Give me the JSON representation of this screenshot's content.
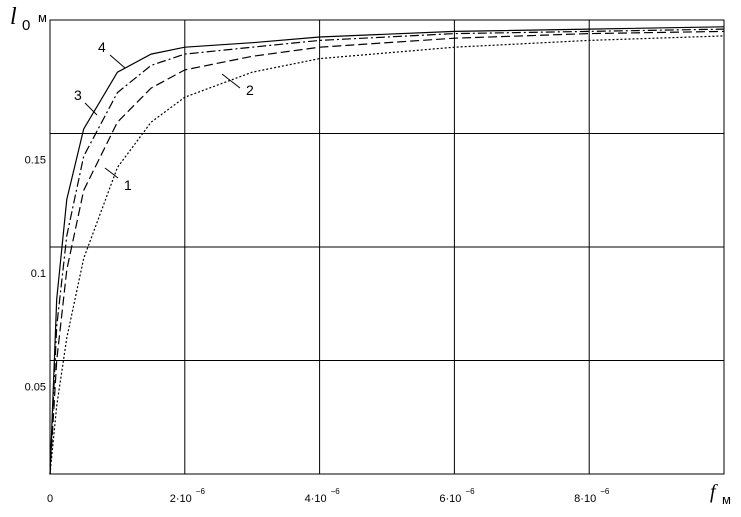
{
  "chart_data": {
    "type": "line",
    "ylabel": {
      "symbol": "l",
      "subscript": "0",
      "unit": "м"
    },
    "xlabel": {
      "symbol": "f",
      "unit": "м"
    },
    "x": [
      0,
      1e-07,
      2.5e-07,
      5e-07,
      1e-06,
      1.5e-06,
      2e-06,
      3e-06,
      4e-06,
      6e-06,
      8e-06,
      1e-05
    ],
    "series": [
      {
        "name": "1",
        "color": "#000000",
        "style": "dotted",
        "values": [
          0,
          0.03,
          0.06,
          0.095,
          0.135,
          0.155,
          0.166,
          0.177,
          0.183,
          0.188,
          0.191,
          0.193
        ]
      },
      {
        "name": "2",
        "color": "#000000",
        "style": "dashed",
        "values": [
          0,
          0.05,
          0.09,
          0.125,
          0.155,
          0.17,
          0.178,
          0.184,
          0.188,
          0.192,
          0.194,
          0.195
        ]
      },
      {
        "name": "3",
        "color": "#000000",
        "style": "dashdot",
        "values": [
          0,
          0.065,
          0.105,
          0.14,
          0.168,
          0.18,
          0.185,
          0.188,
          0.191,
          0.194,
          0.195,
          0.196
        ]
      },
      {
        "name": "4",
        "color": "#000000",
        "style": "solid",
        "values": [
          0,
          0.077,
          0.121,
          0.152,
          0.177,
          0.185,
          0.188,
          0.19,
          0.1925,
          0.195,
          0.196,
          0.197
        ]
      }
    ],
    "xlim": [
      0,
      1e-05
    ],
    "ylim": [
      0,
      0.2
    ],
    "xticks": [
      0,
      {
        "value": 2e-06,
        "label": "2·10",
        "exponent": "−6"
      },
      {
        "value": 4e-06,
        "label": "4·10",
        "exponent": "−6"
      },
      {
        "value": 6e-06,
        "label": "6·10",
        "exponent": "−6"
      },
      {
        "value": 8e-06,
        "label": "8·10",
        "exponent": "−6"
      }
    ],
    "yticks": [
      0.05,
      0.1,
      0.15
    ],
    "grid": true
  }
}
